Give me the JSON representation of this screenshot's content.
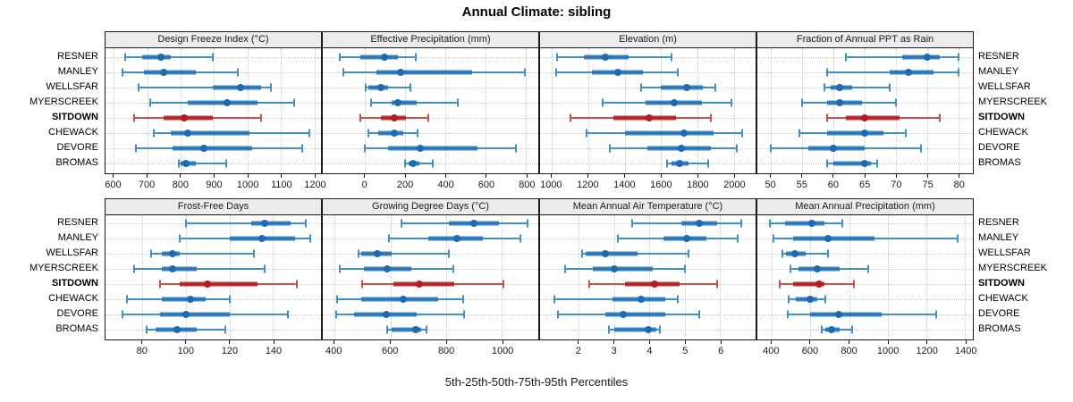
{
  "title": "Annual Climate: sibling",
  "caption": "5th-25th-50th-75th-95th Percentiles",
  "sites": [
    "RESNER",
    "MANLEY",
    "WELLSFAR",
    "MYERSCREEK",
    "SITDOWN",
    "CHEWACK",
    "DEVORE",
    "BROMAS"
  ],
  "highlight_site": "SITDOWN",
  "percentile_labels": [
    "5th",
    "25th",
    "50th",
    "75th",
    "95th"
  ],
  "colors": {
    "blue_line": "#4190c5",
    "blue_iqr": "#2171b5",
    "blue_dot": "#1c6bb0",
    "red_line": "#c65247",
    "red_iqr": "#b2181f",
    "red_dot": "#b01d23",
    "strip_bg": "#ececec",
    "grid": "#c6c6c6",
    "border": "#1a1a1a"
  },
  "chart_data": [
    {
      "type": "dotplot-percentile-range",
      "title": "Design Freeze Index (°C)",
      "domain": [
        575,
        1220
      ],
      "ticks": [
        600,
        700,
        800,
        900,
        1000,
        1100,
        1200
      ],
      "series": [
        [
          635,
          685,
          740,
          770,
          895
        ],
        [
          625,
          690,
          750,
          845,
          970
        ],
        [
          675,
          895,
          980,
          1040,
          1070
        ],
        [
          710,
          820,
          940,
          1030,
          1140
        ],
        [
          660,
          750,
          810,
          895,
          1040
        ],
        [
          720,
          770,
          820,
          1005,
          1185
        ],
        [
          665,
          775,
          870,
          1015,
          1165
        ],
        [
          795,
          800,
          815,
          845,
          935
        ]
      ]
    },
    {
      "type": "dotplot-percentile-range",
      "title": "Effective Precipitation (mm)",
      "domain": [
        -210,
        860
      ],
      "ticks": [
        0,
        200,
        400,
        600,
        800
      ],
      "series": [
        [
          -125,
          -25,
          95,
          165,
          250
        ],
        [
          -110,
          55,
          175,
          530,
          795
        ],
        [
          5,
          15,
          80,
          115,
          225
        ],
        [
          30,
          130,
          165,
          255,
          460
        ],
        [
          -25,
          80,
          145,
          205,
          315
        ],
        [
          15,
          65,
          145,
          190,
          260
        ],
        [
          0,
          115,
          275,
          560,
          750
        ],
        [
          200,
          215,
          240,
          270,
          335
        ]
      ]
    },
    {
      "type": "dotplot-percentile-range",
      "title": "Elevation (m)",
      "domain": [
        935,
        2120
      ],
      "ticks": [
        1000,
        1200,
        1400,
        1600,
        1800,
        2000
      ],
      "series": [
        [
          1030,
          1175,
          1295,
          1420,
          1660
        ],
        [
          1025,
          1220,
          1365,
          1500,
          1690
        ],
        [
          1490,
          1600,
          1740,
          1830,
          1900
        ],
        [
          1280,
          1515,
          1675,
          1825,
          1985
        ],
        [
          1100,
          1340,
          1535,
          1680,
          1875
        ],
        [
          1190,
          1400,
          1725,
          1890,
          2045
        ],
        [
          1320,
          1525,
          1710,
          1875,
          2015
        ],
        [
          1635,
          1660,
          1700,
          1750,
          1860
        ]
      ]
    },
    {
      "type": "dotplot-percentile-range",
      "title": "Fraction of Annual PPT as Rain",
      "domain": [
        47.8,
        82.3
      ],
      "ticks": [
        50,
        55,
        60,
        65,
        70,
        75,
        80
      ],
      "series": [
        [
          62,
          71,
          75,
          77,
          80
        ],
        [
          59,
          69,
          72,
          76,
          80
        ],
        [
          58.5,
          59.5,
          61,
          63,
          69
        ],
        [
          55,
          59,
          61,
          64.5,
          70
        ],
        [
          59,
          62,
          65,
          70.5,
          77
        ],
        [
          54.5,
          59,
          65,
          68,
          71.5
        ],
        [
          50,
          56,
          60,
          65,
          74
        ],
        [
          59,
          60,
          65,
          66,
          67
        ]
      ]
    },
    {
      "type": "dotplot-percentile-range",
      "title": "Frost-Free Days",
      "domain": [
        63,
        162
      ],
      "ticks": [
        80,
        100,
        120,
        140
      ],
      "series": [
        [
          100,
          130,
          136,
          148,
          155
        ],
        [
          97,
          120,
          135,
          150,
          157
        ],
        [
          84,
          89,
          94,
          97,
          131
        ],
        [
          76,
          89,
          94,
          105,
          136
        ],
        [
          88,
          97,
          110,
          133,
          151
        ],
        [
          73,
          89,
          102,
          109,
          120
        ],
        [
          71,
          88,
          100,
          120,
          147
        ],
        [
          82,
          86,
          96,
          105,
          118
        ]
      ]
    },
    {
      "type": "dotplot-percentile-range",
      "title": "Growing Degree Days (°C)",
      "domain": [
        358,
        1130
      ],
      "ticks": [
        400,
        600,
        800,
        1000
      ],
      "series": [
        [
          640,
          810,
          900,
          990,
          1090
        ],
        [
          595,
          735,
          840,
          930,
          1065
        ],
        [
          485,
          495,
          555,
          605,
          810
        ],
        [
          420,
          505,
          590,
          675,
          825
        ],
        [
          500,
          610,
          705,
          830,
          1005
        ],
        [
          410,
          495,
          645,
          770,
          860
        ],
        [
          405,
          470,
          585,
          695,
          865
        ],
        [
          590,
          605,
          690,
          710,
          730
        ]
      ]
    },
    {
      "type": "dotplot-percentile-range",
      "title": "Mean Annual Air Temperature (°C)",
      "domain": [
        0.9,
        7.0
      ],
      "ticks": [
        2,
        3,
        4,
        5,
        6
      ],
      "series": [
        [
          3.5,
          4.9,
          5.4,
          5.9,
          6.6
        ],
        [
          3.1,
          4.4,
          5.05,
          5.6,
          6.5
        ],
        [
          2.1,
          2.2,
          2.75,
          3.65,
          5.1
        ],
        [
          1.6,
          2.4,
          3.0,
          4.1,
          5.0
        ],
        [
          2.3,
          3.3,
          4.15,
          4.85,
          5.9
        ],
        [
          1.3,
          2.95,
          3.75,
          4.45,
          4.8
        ],
        [
          1.4,
          2.75,
          3.25,
          4.45,
          5.4
        ],
        [
          2.85,
          3.0,
          3.95,
          4.2,
          4.3
        ]
      ]
    },
    {
      "type": "dotplot-percentile-range",
      "title": "Mean Annual Precipitation (mm)",
      "domain": [
        325,
        1440
      ],
      "ticks": [
        400,
        600,
        800,
        1000,
        1200,
        1400
      ],
      "series": [
        [
          390,
          470,
          605,
          670,
          765
        ],
        [
          410,
          510,
          690,
          930,
          1360
        ],
        [
          455,
          475,
          520,
          575,
          690
        ],
        [
          495,
          540,
          635,
          750,
          900
        ],
        [
          440,
          510,
          645,
          670,
          825
        ],
        [
          485,
          525,
          600,
          635,
          675
        ],
        [
          480,
          600,
          745,
          970,
          1250
        ],
        [
          660,
          675,
          710,
          750,
          815
        ]
      ]
    }
  ]
}
